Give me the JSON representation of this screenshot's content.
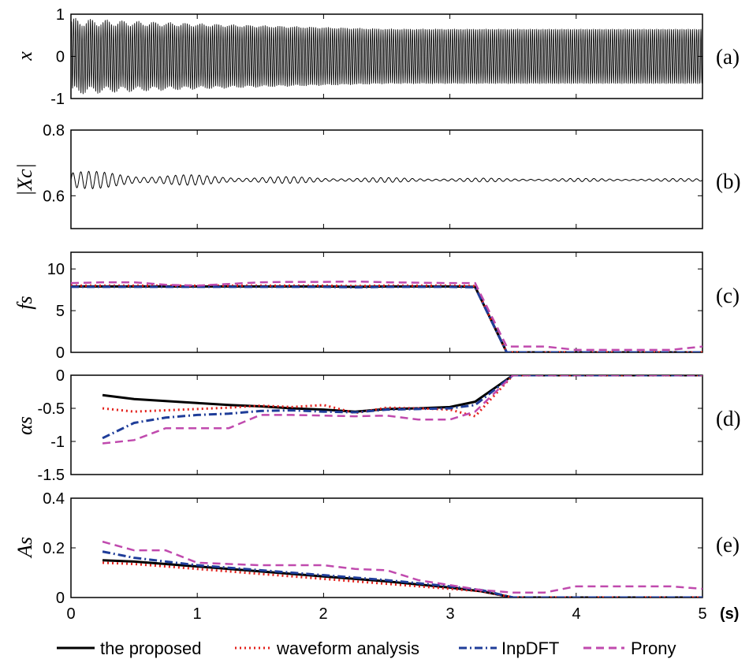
{
  "x_axis": {
    "ticks": [
      "0",
      "1",
      "2",
      "3",
      "4",
      "5"
    ],
    "unit": "(s)",
    "range": [
      0,
      5
    ]
  },
  "legend": [
    "the proposed",
    "waveform analysis",
    "InpDFT",
    "Prony"
  ],
  "colors": {
    "proposed": "#000000",
    "waveform": "#e3201b",
    "inpdft": "#1f3d99",
    "prony": "#c04aae",
    "signal": "#000000"
  },
  "chart_data": [
    {
      "type": "line",
      "panel": "(a)",
      "ylabel": "x",
      "ylim": [
        -1,
        1
      ],
      "yticks": [
        "1",
        "0",
        "-1"
      ],
      "signal": {
        "carrier_hz": 60,
        "envelope_start": 0.82,
        "envelope_end": 0.65,
        "offset_amp": 0.1
      },
      "series": [
        {
          "name": "",
          "x": [
            0,
            5
          ],
          "y": [
            0,
            0
          ]
        }
      ]
    },
    {
      "type": "line",
      "panel": "(b)",
      "ylabel": "|Xc|",
      "ylim": [
        0.5,
        0.8
      ],
      "yticks": [
        "0.8",
        "0.6"
      ],
      "signal": {
        "mean": 0.648,
        "ripple_start": 0.03,
        "ripple_end": 0.004
      },
      "series": [
        {
          "name": "",
          "x": [
            0,
            5
          ],
          "y": [
            0.648,
            0.648
          ]
        }
      ]
    },
    {
      "type": "line",
      "panel": "(c)",
      "ylabel": "fs",
      "ylim": [
        0,
        12
      ],
      "yticks": [
        "10",
        "5",
        "0"
      ],
      "series": [
        {
          "name": "the proposed",
          "x": [
            0,
            0.25,
            0.5,
            0.75,
            1,
            1.25,
            1.5,
            1.75,
            2,
            2.25,
            2.5,
            2.75,
            3,
            3.2,
            3.45,
            3.75,
            4,
            4.25,
            4.5,
            4.75,
            5
          ],
          "y": [
            7.9,
            7.9,
            7.9,
            7.9,
            7.9,
            7.9,
            7.9,
            7.9,
            7.9,
            7.85,
            7.9,
            7.9,
            7.9,
            7.85,
            0,
            0,
            0,
            0,
            0,
            0,
            0
          ]
        },
        {
          "name": "waveform analysis",
          "x": [
            0,
            0.25,
            0.5,
            0.75,
            1,
            1.25,
            1.5,
            1.75,
            2,
            2.25,
            2.5,
            2.75,
            3,
            3.2,
            3.45,
            3.75,
            4,
            4.25,
            4.5,
            4.75,
            5
          ],
          "y": [
            8.0,
            8.0,
            8.0,
            8.0,
            8.0,
            8.0,
            8.0,
            8.0,
            8.0,
            7.95,
            8.0,
            8.0,
            8.0,
            7.95,
            0,
            0,
            0,
            0,
            0,
            0,
            0
          ]
        },
        {
          "name": "InpDFT",
          "x": [
            0,
            0.25,
            0.5,
            0.75,
            1,
            1.25,
            1.5,
            1.75,
            2,
            2.25,
            2.5,
            2.75,
            3,
            3.2,
            3.45,
            3.75,
            4,
            4.25,
            4.5,
            4.75,
            5
          ],
          "y": [
            7.85,
            7.85,
            7.85,
            7.85,
            7.85,
            7.85,
            7.85,
            7.85,
            7.85,
            7.8,
            7.85,
            7.85,
            7.85,
            7.8,
            0,
            0,
            0,
            0,
            0,
            0,
            0
          ]
        },
        {
          "name": "Prony",
          "x": [
            0,
            0.25,
            0.5,
            0.75,
            1,
            1.25,
            1.5,
            1.75,
            2,
            2.25,
            2.5,
            2.75,
            3,
            3.2,
            3.45,
            3.75,
            4,
            4.25,
            4.5,
            4.75,
            5
          ],
          "y": [
            8.3,
            8.4,
            8.4,
            8.1,
            8.0,
            8.2,
            8.4,
            8.45,
            8.45,
            8.5,
            8.4,
            8.35,
            8.3,
            8.3,
            0.7,
            0.7,
            0.3,
            0.3,
            0.3,
            0.3,
            0.7
          ]
        }
      ]
    },
    {
      "type": "line",
      "panel": "(d)",
      "ylabel": "αs",
      "ylim": [
        -1.5,
        0
      ],
      "yticks": [
        "0",
        "-0.5",
        "-1",
        "-1.5"
      ],
      "series": [
        {
          "name": "the proposed",
          "x": [
            0.25,
            0.5,
            0.75,
            1,
            1.25,
            1.5,
            1.75,
            2,
            2.25,
            2.5,
            2.75,
            3,
            3.2,
            3.5,
            3.75,
            4,
            4.25,
            4.5,
            4.75,
            5
          ],
          "y": [
            -0.3,
            -0.36,
            -0.39,
            -0.42,
            -0.45,
            -0.47,
            -0.5,
            -0.52,
            -0.55,
            -0.51,
            -0.5,
            -0.48,
            -0.4,
            0,
            0,
            0,
            0,
            0,
            0,
            0
          ]
        },
        {
          "name": "waveform analysis",
          "x": [
            0.25,
            0.5,
            0.75,
            1,
            1.25,
            1.5,
            1.75,
            2,
            2.25,
            2.5,
            2.75,
            3,
            3.2,
            3.5,
            3.75,
            4,
            4.25,
            4.5,
            4.75,
            5
          ],
          "y": [
            -0.5,
            -0.55,
            -0.53,
            -0.51,
            -0.49,
            -0.46,
            -0.48,
            -0.45,
            -0.57,
            -0.49,
            -0.5,
            -0.52,
            -0.62,
            0,
            0,
            0,
            0,
            0,
            0,
            0
          ]
        },
        {
          "name": "InpDFT",
          "x": [
            0.25,
            0.5,
            0.75,
            1,
            1.25,
            1.5,
            1.75,
            2,
            2.25,
            2.5,
            2.75,
            3,
            3.2,
            3.5,
            3.75,
            4,
            4.25,
            4.5,
            4.75,
            5
          ],
          "y": [
            -0.95,
            -0.72,
            -0.64,
            -0.6,
            -0.58,
            -0.54,
            -0.53,
            -0.55,
            -0.56,
            -0.52,
            -0.51,
            -0.5,
            -0.45,
            0,
            0,
            0,
            0,
            0,
            0,
            0
          ]
        },
        {
          "name": "Prony",
          "x": [
            0.25,
            0.5,
            0.75,
            1,
            1.25,
            1.5,
            1.75,
            2,
            2.25,
            2.5,
            2.75,
            3,
            3.2,
            3.5,
            3.75,
            4,
            4.25,
            4.5,
            4.75,
            5
          ],
          "y": [
            -1.03,
            -0.98,
            -0.8,
            -0.8,
            -0.8,
            -0.6,
            -0.6,
            -0.61,
            -0.62,
            -0.61,
            -0.67,
            -0.67,
            -0.55,
            0,
            0,
            0,
            0,
            0,
            0,
            0
          ]
        }
      ]
    },
    {
      "type": "line",
      "panel": "(e)",
      "ylabel": "As",
      "ylim": [
        0,
        0.4
      ],
      "yticks": [
        "0.4",
        "0.2",
        "0"
      ],
      "series": [
        {
          "name": "the proposed",
          "x": [
            0.25,
            0.5,
            1,
            1.5,
            2,
            2.5,
            3,
            3.25,
            3.5,
            3.75,
            4,
            4.25,
            4.5,
            4.75,
            5
          ],
          "y": [
            0.15,
            0.145,
            0.125,
            0.105,
            0.085,
            0.065,
            0.04,
            0.025,
            0,
            0,
            0,
            0,
            0,
            0,
            0
          ]
        },
        {
          "name": "waveform analysis",
          "x": [
            0.25,
            0.5,
            1,
            1.5,
            2,
            2.5,
            3,
            3.25,
            3.5,
            3.75,
            4,
            4.25,
            4.5,
            4.75,
            5
          ],
          "y": [
            0.14,
            0.135,
            0.115,
            0.095,
            0.075,
            0.055,
            0.035,
            0.025,
            0,
            0,
            0,
            0,
            0,
            0,
            0
          ]
        },
        {
          "name": "InpDFT",
          "x": [
            0.25,
            0.5,
            1,
            1.5,
            2,
            2.5,
            3,
            3.25,
            3.5,
            3.75,
            4,
            4.25,
            4.5,
            4.75,
            5
          ],
          "y": [
            0.185,
            0.16,
            0.13,
            0.11,
            0.09,
            0.07,
            0.045,
            0.03,
            0,
            0,
            0,
            0,
            0,
            0,
            0
          ]
        },
        {
          "name": "Prony",
          "x": [
            0.25,
            0.5,
            0.75,
            1,
            1.25,
            1.5,
            1.75,
            2,
            2.25,
            2.5,
            2.75,
            3,
            3.25,
            3.5,
            3.75,
            4,
            4.25,
            4.5,
            4.75,
            5
          ],
          "y": [
            0.225,
            0.19,
            0.19,
            0.14,
            0.135,
            0.13,
            0.13,
            0.13,
            0.115,
            0.11,
            0.07,
            0.05,
            0.03,
            0.02,
            0.02,
            0.045,
            0.045,
            0.045,
            0.045,
            0.035
          ]
        }
      ]
    }
  ]
}
